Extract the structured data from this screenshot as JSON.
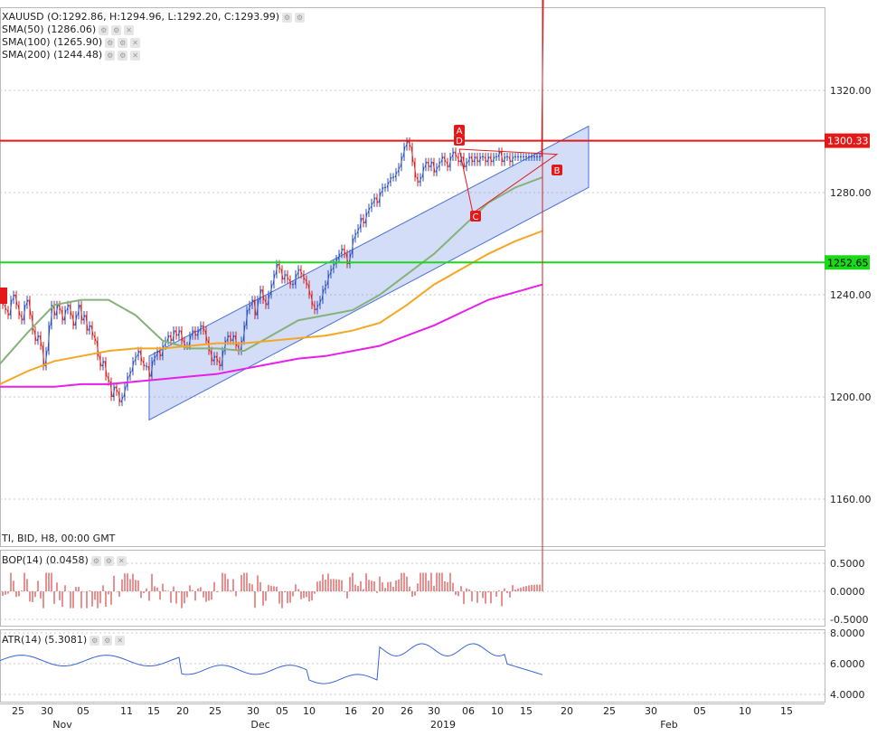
{
  "legend": {
    "main_title": "XAUUSD (O:1292.86, H:1294.96, L:1292.20, C:1293.99)",
    "indicators": [
      {
        "label": "SMA(50) (1286.06)",
        "color": "#86b27a"
      },
      {
        "label": "SMA(100) (1265.90)",
        "color": "#f5a623"
      },
      {
        "label": "SMA(200) (1244.48)",
        "color": "#e81fe8"
      }
    ],
    "info_line": "TI, BID, H8, 00:00 GMT",
    "bop_label": "BOP(14) (0.0458)",
    "atr_label": "ATR(14) (5.3081)"
  },
  "price_levels": {
    "resistance": "1300.33",
    "support": "1252.65",
    "resistance_color": "#e31919",
    "support_color": "#19d919"
  },
  "pattern_labels": [
    "A",
    "D",
    "B",
    "C"
  ],
  "chart_data": {
    "type": "candlestick",
    "main_y_ticks": [
      "1320.00",
      "1280.00",
      "1240.00",
      "1200.00",
      "1160.00"
    ],
    "bop_y_ticks": [
      "0.5000",
      "0.0000",
      "-0.5000"
    ],
    "atr_y_ticks": [
      "8.0000",
      "6.0000",
      "4.0000"
    ],
    "x_tick_labels": [
      "25",
      "30",
      "05",
      "11",
      "15",
      "20",
      "25",
      "30",
      "05",
      "10",
      "16",
      "20",
      "26",
      "30",
      "06",
      "10",
      "15",
      "20",
      "25",
      "30",
      "05",
      "10",
      "15"
    ],
    "month_labels": [
      "Nov",
      "Dec",
      "2019",
      "Feb"
    ],
    "ohlc_last": {
      "open": 1292.86,
      "high": 1294.96,
      "low": 1292.2,
      "close": 1293.99
    },
    "sma": {
      "sma50": 1286.06,
      "sma100": 1265.9,
      "sma200": 1244.48
    },
    "horizontal_levels": [
      1300.33,
      1252.65
    ],
    "bop_last": 0.0458,
    "atr_last": 5.3081,
    "price_series_x": [
      0,
      3,
      6,
      9,
      12,
      15,
      18,
      21,
      24,
      27,
      30,
      33,
      36,
      39,
      42,
      45,
      48,
      51,
      54,
      57,
      60,
      63,
      66,
      69,
      72,
      75,
      78,
      81,
      84,
      87,
      90,
      93,
      96,
      99,
      102,
      105,
      108,
      111,
      114,
      117,
      120,
      123,
      126,
      129,
      132,
      135,
      138,
      141,
      144,
      147,
      150,
      153,
      156,
      159,
      162,
      165,
      168,
      171,
      174,
      177,
      180,
      183,
      186,
      189,
      192,
      195,
      198,
      201,
      204,
      207,
      210,
      213,
      216,
      219,
      222,
      225,
      228,
      231,
      234,
      237,
      240,
      243,
      246,
      249,
      252,
      255,
      258,
      261,
      264,
      267,
      270,
      273,
      276,
      279,
      282,
      285,
      288,
      291,
      294,
      297,
      300,
      303,
      306,
      309,
      312,
      315,
      318,
      321,
      324,
      327,
      330,
      333,
      336,
      339,
      342,
      345,
      348,
      351,
      354,
      357,
      360,
      363,
      366,
      369,
      372,
      375,
      378,
      381,
      384,
      387,
      390,
      393,
      396,
      399,
      402,
      405,
      408,
      411,
      414,
      417,
      420,
      423,
      426,
      429,
      432,
      435,
      438,
      441,
      444,
      447,
      450,
      453,
      456,
      459,
      462,
      465,
      468,
      471,
      474,
      477,
      480,
      483,
      486,
      489,
      492,
      495,
      498,
      501,
      504,
      507,
      510,
      513,
      516,
      519,
      522,
      525,
      528,
      531,
      534,
      537,
      540,
      543,
      546,
      549,
      552,
      555,
      558,
      561,
      564,
      567,
      570,
      573,
      576,
      579,
      582,
      585,
      588,
      591,
      594,
      597,
      600
    ],
    "price_series_close": [
      1238,
      1236,
      1234,
      1232,
      1238,
      1240,
      1236,
      1232,
      1230,
      1236,
      1238,
      1232,
      1226,
      1222,
      1224,
      1220,
      1212,
      1218,
      1228,
      1236,
      1232,
      1236,
      1234,
      1230,
      1234,
      1236,
      1232,
      1228,
      1232,
      1236,
      1230,
      1232,
      1226,
      1228,
      1224,
      1222,
      1216,
      1212,
      1214,
      1208,
      1206,
      1200,
      1204,
      1202,
      1198,
      1200,
      1204,
      1208,
      1210,
      1214,
      1216,
      1218,
      1214,
      1212,
      1212,
      1208,
      1214,
      1216,
      1218,
      1216,
      1220,
      1222,
      1224,
      1222,
      1226,
      1224,
      1226,
      1222,
      1220,
      1220,
      1224,
      1226,
      1224,
      1226,
      1228,
      1226,
      1222,
      1218,
      1214,
      1216,
      1214,
      1212,
      1218,
      1222,
      1224,
      1222,
      1224,
      1220,
      1218,
      1222,
      1228,
      1234,
      1236,
      1238,
      1232,
      1238,
      1242,
      1238,
      1236,
      1240,
      1244,
      1248,
      1252,
      1250,
      1246,
      1248,
      1246,
      1244,
      1244,
      1248,
      1250,
      1248,
      1246,
      1244,
      1240,
      1236,
      1234,
      1236,
      1238,
      1242,
      1244,
      1248,
      1250,
      1252,
      1254,
      1256,
      1258,
      1256,
      1252,
      1256,
      1262,
      1264,
      1266,
      1270,
      1268,
      1272,
      1274,
      1276,
      1278,
      1276,
      1280,
      1282,
      1282,
      1284,
      1286,
      1286,
      1288,
      1290,
      1294,
      1298,
      1300,
      1298,
      1292,
      1286,
      1284,
      1286,
      1290,
      1292,
      1290,
      1292,
      1288,
      1290,
      1292,
      1294,
      1292,
      1290,
      1294,
      1296,
      1294,
      1292,
      1294,
      1290,
      1292,
      1294,
      1292,
      1294,
      1292,
      1294,
      1294,
      1292,
      1294,
      1292,
      1294,
      1294,
      1296,
      1292,
      1294,
      1294,
      1292,
      1294,
      1294,
      1294,
      1294,
      1294,
      1294,
      1294,
      1294,
      1294,
      1294,
      1294
    ],
    "sma_series": {
      "sma50": [
        [
          0,
          1213
        ],
        [
          30,
          1225
        ],
        [
          60,
          1236
        ],
        [
          90,
          1238
        ],
        [
          120,
          1238
        ],
        [
          150,
          1232
        ],
        [
          180,
          1222
        ],
        [
          210,
          1219
        ],
        [
          240,
          1219
        ],
        [
          270,
          1218
        ],
        [
          300,
          1224
        ],
        [
          330,
          1230
        ],
        [
          360,
          1232
        ],
        [
          390,
          1234
        ],
        [
          420,
          1240
        ],
        [
          450,
          1248
        ],
        [
          480,
          1256
        ],
        [
          510,
          1266
        ],
        [
          540,
          1276
        ],
        [
          570,
          1282
        ],
        [
          600,
          1286
        ]
      ],
      "sma100": [
        [
          0,
          1205
        ],
        [
          30,
          1210
        ],
        [
          60,
          1214
        ],
        [
          90,
          1216
        ],
        [
          120,
          1218
        ],
        [
          150,
          1219
        ],
        [
          180,
          1219
        ],
        [
          210,
          1220
        ],
        [
          240,
          1221
        ],
        [
          270,
          1221
        ],
        [
          300,
          1222
        ],
        [
          330,
          1223
        ],
        [
          360,
          1224
        ],
        [
          390,
          1226
        ],
        [
          420,
          1229
        ],
        [
          450,
          1236
        ],
        [
          480,
          1244
        ],
        [
          510,
          1250
        ],
        [
          540,
          1256
        ],
        [
          570,
          1261
        ],
        [
          600,
          1265
        ]
      ],
      "sma200": [
        [
          0,
          1204
        ],
        [
          30,
          1204
        ],
        [
          60,
          1204
        ],
        [
          90,
          1205
        ],
        [
          120,
          1205
        ],
        [
          150,
          1206
        ],
        [
          180,
          1207
        ],
        [
          210,
          1208
        ],
        [
          240,
          1209
        ],
        [
          270,
          1211
        ],
        [
          300,
          1213
        ],
        [
          330,
          1215
        ],
        [
          360,
          1216
        ],
        [
          390,
          1218
        ],
        [
          420,
          1220
        ],
        [
          450,
          1224
        ],
        [
          480,
          1228
        ],
        [
          510,
          1233
        ],
        [
          540,
          1238
        ],
        [
          570,
          1241
        ],
        [
          600,
          1244
        ]
      ]
    }
  }
}
